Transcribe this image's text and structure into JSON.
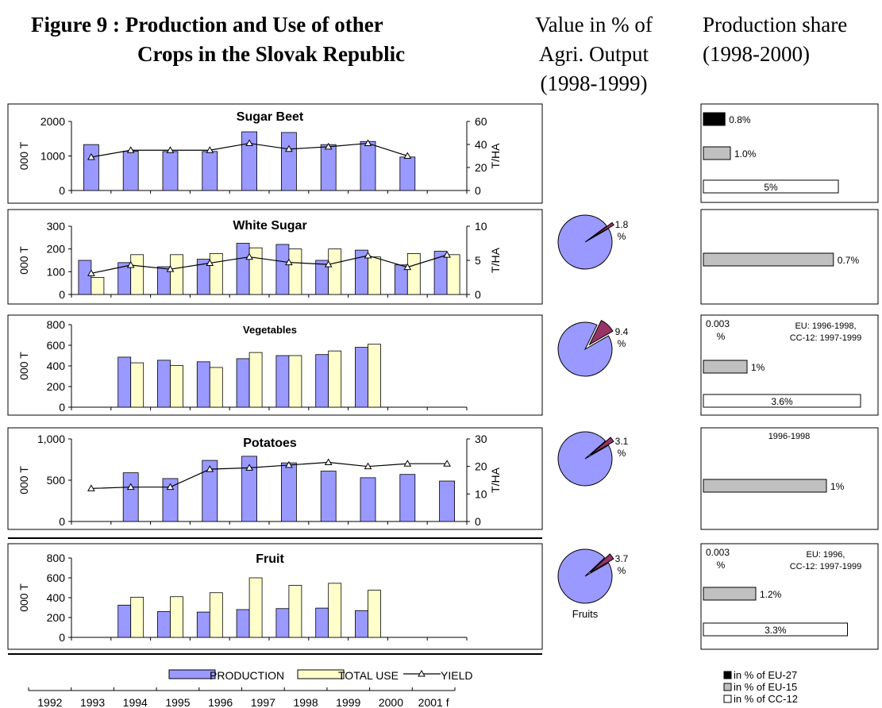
{
  "header": {
    "figure_title": "Figure 9 :  Production and Use of other Crops in the Slovak Republic",
    "title_line1": "Figure 9 :  Production and Use of other",
    "title_line2": "Crops in the Slovak Republic",
    "col2_lines": [
      "Value in % of",
      "Agri. Output",
      "(1998-1999)"
    ],
    "col3_lines": [
      "Production share",
      "(1998-2000)"
    ]
  },
  "colors": {
    "production": "#9999ff",
    "total_use": "#ffffcc",
    "pie_main": "#9999ff",
    "pie_slice": "#993366",
    "eu27": "#000000",
    "eu15": "#c0c0c0",
    "cc12": "#ffffff"
  },
  "legend": {
    "production": "PRODUCTION",
    "total_use": "TOTAL USE",
    "yield": "YIELD"
  },
  "xaxis_years": [
    "1992",
    "1993",
    "1994",
    "1995",
    "1996",
    "1997",
    "1998",
    "1999",
    "2000",
    "2001 f"
  ],
  "share_legend": [
    "in % of EU-27",
    "in % of EU-15",
    "in % of CC-12"
  ],
  "chart_data": [
    {
      "type": "bar",
      "title": "Sugar Beet",
      "ylabel": "000 T",
      "y2label": "T/HA",
      "ylim": [
        0,
        2000
      ],
      "yticks": [
        "0",
        "1000",
        "2000"
      ],
      "y2lim": [
        0,
        60
      ],
      "y2ticks": [
        "0",
        "20",
        "40",
        "60"
      ],
      "categories": [
        "1992",
        "1993",
        "1994",
        "1995",
        "1996",
        "1997",
        "1998",
        "1999",
        "2000",
        "2001 f"
      ],
      "series": [
        {
          "name": "PRODUCTION",
          "values": [
            1330,
            1140,
            1130,
            1130,
            1700,
            1680,
            1330,
            1420,
            970,
            null
          ]
        },
        {
          "name": "YIELD",
          "axis": "right",
          "values": [
            29,
            35,
            35,
            35,
            41,
            36,
            38,
            41,
            30,
            null
          ]
        }
      ]
    },
    {
      "type": "bar",
      "title": "White Sugar",
      "ylabel": "000 T",
      "y2label": "T/HA",
      "ylim": [
        0,
        300
      ],
      "yticks": [
        "0",
        "100",
        "200",
        "300"
      ],
      "y2lim": [
        0,
        10
      ],
      "y2ticks": [
        "0",
        "5",
        "10"
      ],
      "categories": [
        "1992",
        "1993",
        "1994",
        "1995",
        "1996",
        "1997",
        "1998",
        "1999",
        "2000",
        "2001 f"
      ],
      "series": [
        {
          "name": "PRODUCTION",
          "values": [
            150,
            140,
            122,
            155,
            225,
            220,
            150,
            195,
            130,
            190
          ]
        },
        {
          "name": "TOTAL USE",
          "values": [
            75,
            175,
            175,
            180,
            205,
            200,
            200,
            165,
            180,
            175
          ]
        },
        {
          "name": "YIELD",
          "axis": "right",
          "values": [
            3.1,
            4.3,
            3.7,
            4.6,
            5.5,
            4.7,
            4.4,
            5.7,
            4.0,
            5.8
          ]
        }
      ]
    },
    {
      "type": "bar",
      "title": "Vegetables",
      "ylabel": "000 T",
      "ylim": [
        0,
        800
      ],
      "yticks": [
        "0",
        "200",
        "400",
        "600",
        "800"
      ],
      "categories": [
        "1992",
        "1993",
        "1994",
        "1995",
        "1996",
        "1997",
        "1998",
        "1999",
        "2000",
        "2001 f"
      ],
      "series": [
        {
          "name": "PRODUCTION",
          "values": [
            null,
            485,
            455,
            440,
            470,
            500,
            510,
            580,
            null,
            null
          ]
        },
        {
          "name": "TOTAL USE",
          "values": [
            null,
            430,
            405,
            385,
            530,
            500,
            545,
            610,
            null,
            null
          ]
        }
      ]
    },
    {
      "type": "bar",
      "title": "Potatoes",
      "ylabel": "000 T",
      "y2label": "T/HA",
      "ylim": [
        0,
        1000
      ],
      "yticks": [
        "0",
        "500",
        "1,000"
      ],
      "y2lim": [
        0,
        30
      ],
      "y2ticks": [
        "0",
        "10",
        "20",
        "30"
      ],
      "categories": [
        "1992",
        "1993",
        "1994",
        "1995",
        "1996",
        "1997",
        "1998",
        "1999",
        "2000",
        "2001 f"
      ],
      "series": [
        {
          "name": "PRODUCTION",
          "values": [
            null,
            590,
            520,
            740,
            790,
            710,
            610,
            530,
            570,
            490
          ]
        },
        {
          "name": "YIELD",
          "axis": "right",
          "values": [
            12,
            12.5,
            12.5,
            19,
            19.5,
            20.5,
            21.5,
            20,
            21,
            21
          ]
        }
      ]
    },
    {
      "type": "bar",
      "title": "Fruit",
      "ylabel": "000 T",
      "ylim": [
        0,
        800
      ],
      "yticks": [
        "0",
        "200",
        "400",
        "600",
        "800"
      ],
      "categories": [
        "1992",
        "1993",
        "1994",
        "1995",
        "1996",
        "1997",
        "1998",
        "1999",
        "2000",
        "2001 f"
      ],
      "series": [
        {
          "name": "PRODUCTION",
          "values": [
            null,
            325,
            260,
            255,
            280,
            290,
            295,
            270,
            null,
            null
          ]
        },
        {
          "name": "TOTAL USE",
          "values": [
            null,
            405,
            410,
            450,
            600,
            525,
            545,
            475,
            null,
            null
          ]
        }
      ]
    },
    {
      "type": "pie",
      "panel": "White Sugar",
      "values": [
        1.8,
        98.2
      ],
      "labels": [
        "1.8",
        "%"
      ]
    },
    {
      "type": "pie",
      "panel": "Vegetables",
      "values": [
        9.4,
        90.6
      ],
      "labels": [
        "9.4",
        "%"
      ]
    },
    {
      "type": "pie",
      "panel": "Potatoes",
      "values": [
        3.1,
        96.9
      ],
      "labels": [
        "3.1",
        "%"
      ]
    },
    {
      "type": "pie",
      "panel": "Fruit",
      "values": [
        3.7,
        96.3
      ],
      "labels": [
        "3.7",
        "%"
      ],
      "caption": "Fruits"
    },
    {
      "type": "bar",
      "orientation": "horizontal",
      "panel": "Sugar Beet",
      "series": [
        {
          "name": "in % of EU-27",
          "value": 0.8,
          "label": "0.8%"
        },
        {
          "name": "in % of EU-15",
          "value": 1.0,
          "label": "1.0%"
        },
        {
          "name": "in % of CC-12",
          "value": 5,
          "label": "5%"
        }
      ]
    },
    {
      "type": "bar",
      "orientation": "horizontal",
      "panel": "White Sugar",
      "series": [
        {
          "name": "in % of EU-15",
          "value": 0.7,
          "label": "0.7%"
        }
      ]
    },
    {
      "type": "bar",
      "orientation": "horizontal",
      "panel": "Vegetables",
      "top_left_lines": [
        "0.003",
        "%"
      ],
      "note_lines": [
        "EU: 1996-1998,",
        "CC-12: 1997-1999"
      ],
      "series": [
        {
          "name": "in % of EU-27",
          "value": 0.003,
          "label": "0.003 %"
        },
        {
          "name": "in % of EU-15",
          "value": 1,
          "label": "1%"
        },
        {
          "name": "in % of CC-12",
          "value": 3.6,
          "label": "3.6%"
        }
      ]
    },
    {
      "type": "bar",
      "orientation": "horizontal",
      "panel": "Potatoes",
      "note_lines": [
        "1996-1998"
      ],
      "series": [
        {
          "name": "in % of EU-15",
          "value": 1,
          "label": "1%"
        }
      ]
    },
    {
      "type": "bar",
      "orientation": "horizontal",
      "panel": "Fruit",
      "top_left_lines": [
        "0.003",
        "%"
      ],
      "note_lines": [
        "EU: 1996,",
        "CC-12: 1997-1999"
      ],
      "series": [
        {
          "name": "in % of EU-27",
          "value": 0.003,
          "label": "0.003 %"
        },
        {
          "name": "in % of EU-15",
          "value": 1.2,
          "label": "1.2%"
        },
        {
          "name": "in % of CC-12",
          "value": 3.3,
          "label": "3.3%"
        }
      ]
    }
  ]
}
